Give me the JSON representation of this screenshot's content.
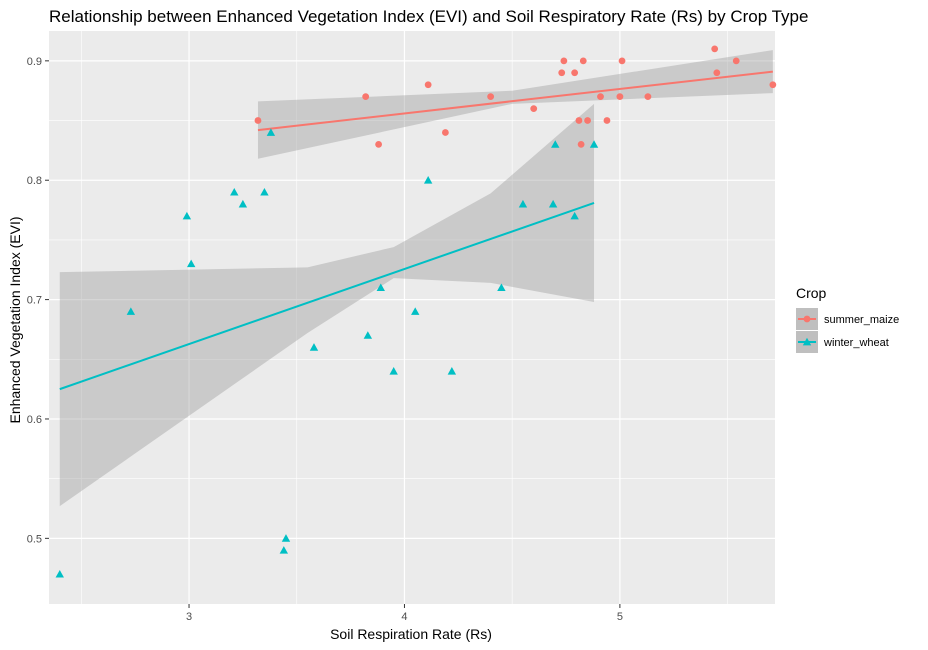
{
  "chart_data": {
    "type": "scatter",
    "title": "Relationship between Enhanced Vegetation Index (EVI) and Soil Respiratory Rate (Rs) by Crop Type",
    "xlabel": "Soil Respiration Rate (Rs)",
    "ylabel": "Enhanced Vegetation Index (EVI)",
    "xlim": [
      2.35,
      5.72
    ],
    "ylim": [
      0.445,
      0.925
    ],
    "x_ticks": [
      3,
      4,
      5
    ],
    "y_ticks": [
      0.5,
      0.6,
      0.7,
      0.8,
      0.9
    ],
    "x_tick_labels": [
      "3",
      "4",
      "5"
    ],
    "y_tick_labels": [
      "0.5",
      "0.6",
      "0.7",
      "0.8",
      "0.9"
    ],
    "grid": true,
    "legend": {
      "title": "Crop",
      "position": "right"
    },
    "series": [
      {
        "name": "summer_maize",
        "color": "#F8766D",
        "marker": "circle",
        "x": [
          3.32,
          3.82,
          3.88,
          4.11,
          4.19,
          4.4,
          4.6,
          4.73,
          4.74,
          4.79,
          4.81,
          4.82,
          4.83,
          4.85,
          4.91,
          4.94,
          5.0,
          5.01,
          5.13,
          5.44,
          5.45,
          5.54,
          5.71
        ],
        "y": [
          0.85,
          0.87,
          0.83,
          0.88,
          0.84,
          0.87,
          0.86,
          0.89,
          0.9,
          0.89,
          0.85,
          0.83,
          0.9,
          0.85,
          0.87,
          0.85,
          0.87,
          0.9,
          0.87,
          0.91,
          0.89,
          0.9,
          0.88
        ],
        "trend": {
          "x": [
            3.32,
            5.71
          ],
          "y": [
            0.842,
            0.891
          ]
        },
        "ci": {
          "x": [
            3.32,
            4.5,
            5.71
          ],
          "lower": [
            0.818,
            0.864,
            0.873
          ],
          "upper": [
            0.866,
            0.875,
            0.909
          ]
        }
      },
      {
        "name": "winter_wheat",
        "color": "#00BFC4",
        "marker": "triangle",
        "x": [
          2.4,
          2.73,
          2.99,
          3.01,
          3.21,
          3.25,
          3.35,
          3.38,
          3.44,
          3.45,
          3.58,
          3.83,
          3.89,
          3.95,
          4.05,
          4.11,
          4.22,
          4.45,
          4.55,
          4.69,
          4.7,
          4.79,
          4.88
        ],
        "y": [
          0.47,
          0.69,
          0.77,
          0.73,
          0.79,
          0.78,
          0.79,
          0.84,
          0.49,
          0.5,
          0.66,
          0.67,
          0.71,
          0.64,
          0.69,
          0.8,
          0.64,
          0.71,
          0.78,
          0.78,
          0.83,
          0.77,
          0.83
        ],
        "trend": {
          "x": [
            2.4,
            4.88
          ],
          "y": [
            0.625,
            0.781
          ]
        },
        "ci": {
          "x": [
            2.4,
            3.55,
            3.95,
            4.4,
            4.88
          ],
          "lower": [
            0.527,
            0.672,
            0.718,
            0.714,
            0.698
          ],
          "upper": [
            0.723,
            0.727,
            0.744,
            0.789,
            0.864
          ]
        }
      }
    ]
  }
}
